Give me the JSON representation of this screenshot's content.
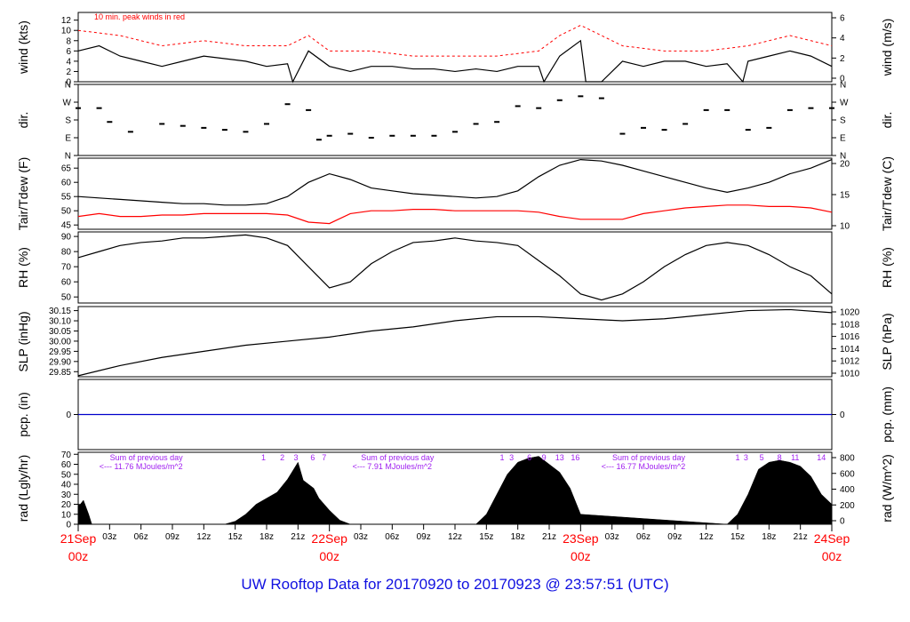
{
  "title": "UW Rooftop Data for 20170920  to  20170923 @ 23:57:51  (UTC)",
  "colors": {
    "primary": "#000000",
    "peak": "#ff0000",
    "dewpoint": "#ff0000",
    "precip": "#0000cc",
    "radiation_note": "#a020f0",
    "date_label": "#ff0000",
    "title": "#1010e0"
  },
  "x_axis": {
    "unit": "hours since 21Sep 00z",
    "range": [
      0,
      72
    ],
    "ticks": [
      {
        "hour": 3,
        "label": "03z"
      },
      {
        "hour": 6,
        "label": "06z"
      },
      {
        "hour": 9,
        "label": "09z"
      },
      {
        "hour": 12,
        "label": "12z"
      },
      {
        "hour": 15,
        "label": "15z"
      },
      {
        "hour": 18,
        "label": "18z"
      },
      {
        "hour": 21,
        "label": "21z"
      },
      {
        "hour": 27,
        "label": "03z"
      },
      {
        "hour": 30,
        "label": "06z"
      },
      {
        "hour": 33,
        "label": "09z"
      },
      {
        "hour": 36,
        "label": "12z"
      },
      {
        "hour": 39,
        "label": "15z"
      },
      {
        "hour": 42,
        "label": "18z"
      },
      {
        "hour": 45,
        "label": "21z"
      },
      {
        "hour": 51,
        "label": "03z"
      },
      {
        "hour": 54,
        "label": "06z"
      },
      {
        "hour": 57,
        "label": "09z"
      },
      {
        "hour": 60,
        "label": "12z"
      },
      {
        "hour": 63,
        "label": "15z"
      },
      {
        "hour": 66,
        "label": "18z"
      },
      {
        "hour": 69,
        "label": "21z"
      }
    ],
    "date_labels": [
      {
        "hour": 0,
        "date": "21Sep",
        "time": "00z"
      },
      {
        "hour": 24,
        "date": "22Sep",
        "time": "00z"
      },
      {
        "hour": 48,
        "date": "23Sep",
        "time": "00z"
      },
      {
        "hour": 72,
        "date": "24Sep",
        "time": "00z"
      }
    ]
  },
  "chart_data": [
    {
      "type": "line",
      "panel": "wind",
      "ylabel": "wind (kts)",
      "ylabel_right": "wind (m/s)",
      "ylim": [
        0,
        13.5
      ],
      "yticks": [
        0,
        2,
        4,
        6,
        8,
        10,
        12
      ],
      "yticks_right": [
        0,
        2,
        4,
        6
      ],
      "annotation": "10 min. peak winds in red",
      "series": [
        {
          "name": "wind",
          "x": [
            0,
            2,
            4,
            6,
            8,
            10,
            12,
            14,
            16,
            18,
            20,
            20.5,
            22,
            24,
            26,
            28,
            30,
            32,
            34,
            36,
            38,
            40,
            42,
            44,
            44.5,
            46,
            48,
            48.5,
            50,
            52,
            54,
            56,
            58,
            60,
            62,
            63.5,
            64,
            66,
            68,
            70,
            72
          ],
          "y": [
            6,
            7,
            5,
            4,
            3,
            4,
            5,
            4.5,
            4,
            3,
            3.5,
            0,
            6,
            3,
            2,
            3,
            3,
            2.5,
            2.5,
            2,
            2.5,
            2,
            3,
            3,
            0,
            5,
            8,
            0,
            0,
            4,
            3,
            4,
            4,
            3,
            3.5,
            0,
            4,
            5,
            6,
            5,
            3
          ]
        },
        {
          "name": "10 min. peak winds",
          "x": [
            0,
            4,
            8,
            12,
            16,
            20,
            22,
            24,
            28,
            32,
            36,
            40,
            44,
            46,
            48,
            52,
            56,
            60,
            64,
            68,
            72
          ],
          "y": [
            10,
            9,
            7,
            8,
            7,
            7,
            9,
            6,
            6,
            5,
            5,
            5,
            6,
            9,
            11,
            7,
            6,
            6,
            7,
            9,
            7
          ]
        }
      ]
    },
    {
      "type": "scatter",
      "panel": "dir",
      "ylabel": "dir.",
      "ylabel_right": "dir.",
      "ylim": [
        0,
        360
      ],
      "ytick_labels": [
        "N",
        "E",
        "S",
        "W",
        "N"
      ],
      "ytick_values": [
        0,
        90,
        180,
        270,
        360
      ],
      "series": [
        {
          "name": "direction",
          "x": [
            0,
            2,
            3,
            5,
            8,
            10,
            12,
            14,
            16,
            18,
            20,
            22,
            23,
            24,
            26,
            28,
            30,
            32,
            34,
            36,
            38,
            40,
            42,
            44,
            46,
            48,
            50,
            52,
            54,
            56,
            58,
            60,
            62,
            64,
            66,
            68,
            70,
            72
          ],
          "y": [
            240,
            240,
            170,
            120,
            160,
            150,
            140,
            130,
            120,
            160,
            260,
            230,
            80,
            100,
            110,
            90,
            100,
            100,
            100,
            120,
            160,
            170,
            250,
            240,
            280,
            300,
            290,
            110,
            140,
            130,
            160,
            230,
            230,
            130,
            140,
            230,
            240,
            240
          ]
        }
      ]
    },
    {
      "type": "line",
      "panel": "temperature",
      "ylabel": "Tair/Tdew (F)",
      "ylabel_right": "Tair/Tdew (C)",
      "ylim": [
        43.5,
        68.5
      ],
      "yticks": [
        45,
        50,
        55,
        60,
        65
      ],
      "yticks_right": [
        10,
        15,
        20
      ],
      "series": [
        {
          "name": "Tair",
          "x": [
            0,
            2,
            4,
            6,
            8,
            10,
            12,
            14,
            16,
            18,
            20,
            22,
            24,
            26,
            28,
            30,
            32,
            34,
            36,
            38,
            40,
            42,
            44,
            46,
            48,
            50,
            52,
            54,
            56,
            58,
            60,
            62,
            64,
            66,
            68,
            70,
            72
          ],
          "y": [
            55,
            54.5,
            54,
            53.5,
            53,
            52.5,
            52.5,
            52,
            52,
            52.5,
            55,
            60,
            63,
            61,
            58,
            57,
            56,
            55.5,
            55,
            54.5,
            55,
            57,
            62,
            66,
            68,
            67.5,
            66,
            64,
            62,
            60,
            58,
            56.5,
            58,
            60,
            63,
            65,
            68
          ]
        },
        {
          "name": "Tdew",
          "x": [
            0,
            2,
            4,
            6,
            8,
            10,
            12,
            14,
            16,
            18,
            20,
            22,
            24,
            26,
            28,
            30,
            32,
            34,
            36,
            38,
            40,
            42,
            44,
            46,
            48,
            50,
            52,
            54,
            56,
            58,
            60,
            62,
            64,
            66,
            68,
            70,
            72
          ],
          "y": [
            48,
            49,
            48,
            48,
            48.5,
            48.5,
            49,
            49,
            49,
            49,
            48.5,
            46,
            45.5,
            49,
            50,
            50,
            50.5,
            50.5,
            50,
            50,
            50,
            50,
            49.5,
            48,
            47,
            47,
            47,
            49,
            50,
            51,
            51.5,
            52,
            52,
            51.5,
            51.5,
            51,
            49.5
          ]
        }
      ]
    },
    {
      "type": "line",
      "panel": "rh",
      "ylabel": "RH (%)",
      "ylabel_right": "RH (%)",
      "ylim": [
        46,
        93
      ],
      "yticks": [
        50,
        60,
        70,
        80,
        90
      ],
      "series": [
        {
          "name": "RH",
          "x": [
            0,
            2,
            4,
            6,
            8,
            10,
            12,
            14,
            16,
            18,
            20,
            22,
            24,
            26,
            28,
            30,
            32,
            34,
            36,
            38,
            40,
            42,
            44,
            46,
            48,
            50,
            52,
            54,
            56,
            58,
            60,
            62,
            64,
            66,
            68,
            70,
            72
          ],
          "y": [
            76,
            80,
            84,
            86,
            87,
            89,
            89,
            90,
            91,
            89,
            84,
            70,
            56,
            60,
            72,
            80,
            86,
            87,
            89,
            87,
            86,
            84,
            74,
            64,
            52,
            48,
            52,
            60,
            70,
            78,
            84,
            86,
            84,
            78,
            70,
            64,
            52
          ]
        }
      ]
    },
    {
      "type": "line",
      "panel": "pressure",
      "ylabel": "SLP (inHg)",
      "ylabel_right": "SLP (hPa)",
      "ylim": [
        29.825,
        30.17
      ],
      "yticks": [
        29.85,
        29.9,
        29.95,
        30.0,
        30.05,
        30.1,
        30.15
      ],
      "ytick_labels": [
        "29.85",
        "29.90",
        "29.95",
        "30.00",
        "30.05",
        "30.10",
        "30.15"
      ],
      "yticks_right": [
        1010,
        1012,
        1014,
        1016,
        1018,
        1020
      ],
      "series": [
        {
          "name": "SLP",
          "x": [
            0,
            4,
            8,
            12,
            16,
            20,
            24,
            28,
            32,
            36,
            40,
            44,
            48,
            52,
            56,
            60,
            64,
            68,
            72
          ],
          "y": [
            29.83,
            29.88,
            29.92,
            29.95,
            29.98,
            30.0,
            30.02,
            30.05,
            30.07,
            30.1,
            30.12,
            30.12,
            30.11,
            30.1,
            30.11,
            30.13,
            30.15,
            30.155,
            30.14
          ]
        }
      ]
    },
    {
      "type": "line",
      "panel": "precip",
      "ylabel": "pcp. (in)",
      "ylabel_right": "pcp. (mm)",
      "ylim": [
        -1,
        1
      ],
      "yticks": [
        0
      ],
      "yticks_right": [
        0
      ],
      "series": [
        {
          "name": "precipitation",
          "x": [
            0,
            72
          ],
          "y": [
            0,
            0
          ]
        }
      ]
    },
    {
      "type": "area",
      "panel": "radiation",
      "ylabel": "rad (Lgly/hr)",
      "ylabel_right": "rad (W/m^2)",
      "ylim": [
        0,
        72
      ],
      "yticks": [
        0,
        10,
        20,
        30,
        40,
        50,
        60,
        70
      ],
      "yticks_right": [
        0,
        200,
        400,
        600,
        800
      ],
      "series": [
        {
          "name": "radiation",
          "x": [
            0,
            0.2,
            0.5,
            1,
            1.3,
            14,
            15,
            16,
            17,
            18,
            19,
            20,
            21,
            21.5,
            22,
            22.5,
            23,
            23.5,
            24,
            25,
            26,
            38,
            39,
            40,
            41,
            42,
            43,
            44,
            45,
            46,
            47,
            48,
            62,
            63,
            64,
            65,
            66,
            67,
            68,
            69,
            70,
            71,
            72
          ],
          "y": [
            20,
            20,
            24,
            10,
            0,
            0,
            3,
            10,
            20,
            26,
            32,
            45,
            62,
            44,
            40,
            36,
            26,
            20,
            14,
            4,
            0,
            0,
            10,
            30,
            50,
            62,
            66,
            68,
            60,
            52,
            36,
            10,
            0,
            10,
            30,
            55,
            62,
            64,
            62,
            58,
            48,
            30,
            20
          ]
        }
      ],
      "day_notes": [
        {
          "center_hour": 6,
          "lines": [
            "Sum of previous day",
            "<--- 11.76 MJoules/m^2"
          ]
        },
        {
          "center_hour": 30,
          "lines": [
            "Sum of previous day",
            "<--- 7.91 MJoules/m^2"
          ]
        },
        {
          "center_hour": 54,
          "lines": [
            "Sum of previous day",
            "<--- 16.77 MJoules/m^2"
          ]
        }
      ],
      "markers": [
        {
          "hour": 17.7,
          "label": "1"
        },
        {
          "hour": 19.5,
          "label": "2"
        },
        {
          "hour": 20.8,
          "label": "3"
        },
        {
          "hour": 22.4,
          "label": "6"
        },
        {
          "hour": 23.5,
          "label": "7"
        },
        {
          "hour": 40.5,
          "label": "1"
        },
        {
          "hour": 41.4,
          "label": "3"
        },
        {
          "hour": 43.1,
          "label": "6"
        },
        {
          "hour": 44.5,
          "label": "9"
        },
        {
          "hour": 46.0,
          "label": "13"
        },
        {
          "hour": 47.5,
          "label": "16"
        },
        {
          "hour": 63.0,
          "label": "1"
        },
        {
          "hour": 63.8,
          "label": "3"
        },
        {
          "hour": 65.3,
          "label": "5"
        },
        {
          "hour": 67.0,
          "label": "8"
        },
        {
          "hour": 68.5,
          "label": "11"
        },
        {
          "hour": 71.0,
          "label": "14"
        }
      ]
    }
  ]
}
